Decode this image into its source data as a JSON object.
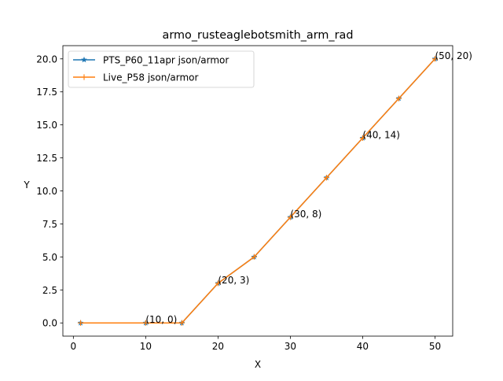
{
  "chart_data": {
    "type": "line",
    "title": "armo_rusteaglebotsmith_arm_rad",
    "xlabel": "X",
    "ylabel": "Y",
    "xlim": [
      -1.45,
      52.45
    ],
    "ylim": [
      -1.0,
      21.0
    ],
    "x_ticks": [
      0,
      10,
      20,
      30,
      40,
      50
    ],
    "x_tick_labels": [
      "0",
      "10",
      "20",
      "30",
      "40",
      "50"
    ],
    "y_ticks": [
      0.0,
      2.5,
      5.0,
      7.5,
      10.0,
      12.5,
      15.0,
      17.5,
      20.0
    ],
    "y_tick_labels": [
      "0.0",
      "2.5",
      "5.0",
      "7.5",
      "10.0",
      "12.5",
      "15.0",
      "17.5",
      "20.0"
    ],
    "grid": false,
    "legend_position": "upper-left",
    "x": [
      1,
      10,
      15,
      20,
      25,
      30,
      35,
      40,
      45,
      50
    ],
    "series": [
      {
        "name": "PTS_P60_11apr json/armor",
        "values": [
          0,
          0,
          0,
          3,
          5,
          8,
          11,
          14,
          17,
          20
        ],
        "color": "#1f77b4",
        "marker": "star"
      },
      {
        "name": "Live_P58 json/armor",
        "values": [
          0,
          0,
          0,
          3,
          5,
          8,
          11,
          14,
          17,
          20
        ],
        "color": "#ff7f0e",
        "marker": "plus"
      }
    ],
    "annotations": [
      {
        "x": 10,
        "y": 0,
        "text": "(10, 0)"
      },
      {
        "x": 20,
        "y": 3,
        "text": "(20, 3)"
      },
      {
        "x": 30,
        "y": 8,
        "text": "(30, 8)"
      },
      {
        "x": 40,
        "y": 14,
        "text": "(40, 14)"
      },
      {
        "x": 50,
        "y": 20,
        "text": "(50, 20)"
      }
    ]
  }
}
